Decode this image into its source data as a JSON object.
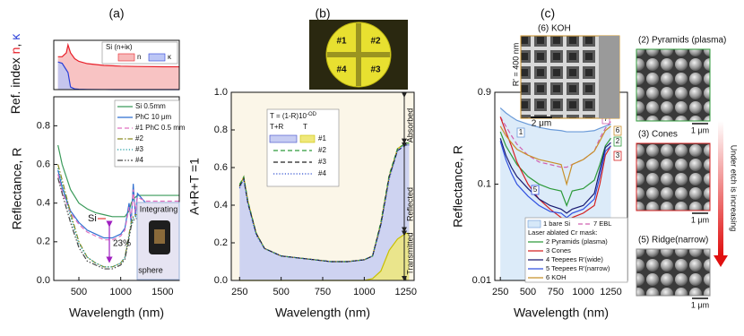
{
  "chart_data": [
    {
      "type": "line",
      "panel": "(a)",
      "ylabel": [
        "Ref. index ",
        "n",
        ", ",
        "κ"
      ],
      "ylabel_colors": [
        "#111111",
        "#e8202a",
        "#111111",
        "#2a3fd8"
      ],
      "legend_title": "Si (n+iκ)",
      "xlim": [
        200,
        1700
      ],
      "ylim": [
        0,
        7.5
      ],
      "x": [
        250,
        300,
        350,
        370,
        400,
        450,
        500,
        600,
        800,
        1000,
        1200,
        1500,
        1700
      ],
      "series": [
        {
          "name": "n",
          "color": "#e8202a",
          "fill": "#f7b9b9",
          "values": [
            5.0,
            5.0,
            5.6,
            6.8,
            5.6,
            4.7,
            4.3,
            3.95,
            3.68,
            3.57,
            3.52,
            3.48,
            3.47
          ]
        },
        {
          "name": "κ",
          "color": "#2a3fd8",
          "fill": "#bcc6f5",
          "values": [
            4.2,
            4.0,
            3.0,
            2.6,
            0.4,
            0.1,
            0.05,
            0.02,
            0.01,
            0,
            0,
            0,
            0
          ]
        }
      ]
    },
    {
      "type": "line",
      "xlabel": "Wavelength (nm)",
      "ylabel": "Reflectance, R",
      "xlim": [
        200,
        1700
      ],
      "xticks": [
        500,
        1000,
        1500
      ],
      "ylim": [
        0,
        0.95
      ],
      "yticks": [
        {
          "value": 0,
          "label": "0.0"
        },
        0.2,
        0.4,
        0.6,
        0.8
      ],
      "x": [
        250,
        300,
        400,
        500,
        600,
        700,
        800,
        900,
        1000,
        1050,
        1100,
        1125,
        1150,
        1175,
        1200,
        1300,
        1500,
        1700
      ],
      "series": [
        {
          "name": "Si 0.5mm",
          "color": "#3a9a5a",
          "values": [
            0.7,
            0.6,
            0.47,
            0.4,
            0.37,
            0.35,
            0.34,
            0.33,
            0.33,
            0.33,
            0.36,
            0.4,
            0.42,
            0.43,
            0.44,
            0.44,
            0.44,
            0.44
          ]
        },
        {
          "name": "PhC 10 μm",
          "color": "#2f6fd0",
          "values": [
            0.57,
            0.48,
            0.36,
            0.3,
            0.26,
            0.24,
            0.22,
            0.22,
            0.24,
            0.27,
            0.4,
            0.3,
            0.5,
            0.33,
            0.45,
            0.4,
            0.4,
            0.4
          ]
        },
        {
          "name": "#1 PhC 0.5 mm",
          "color": "#e070c0",
          "style": "dashed",
          "values": [
            0.55,
            0.46,
            0.35,
            0.29,
            0.25,
            0.23,
            0.21,
            0.21,
            0.23,
            0.26,
            0.38,
            0.32,
            0.47,
            0.35,
            0.43,
            0.41,
            0.41,
            0.41
          ]
        },
        {
          "name": "#2",
          "color": "#8a8a20",
          "style": "dashdot",
          "values": [
            0.6,
            0.52,
            0.35,
            0.2,
            0.12,
            0.09,
            0.07,
            0.07,
            0.09,
            0.12,
            0.24,
            0.3,
            0.33,
            0.34,
            0.34,
            0.34,
            0.33,
            0.33
          ]
        },
        {
          "name": "#3",
          "color": "#1a9aa0",
          "style": "dotted",
          "values": [
            0.58,
            0.5,
            0.33,
            0.19,
            0.12,
            0.09,
            0.07,
            0.07,
            0.09,
            0.12,
            0.23,
            0.29,
            0.32,
            0.33,
            0.33,
            0.33,
            0.33,
            0.33
          ]
        },
        {
          "name": "#4",
          "color": "#444444",
          "style": "dashdotdot",
          "values": [
            0.53,
            0.45,
            0.3,
            0.17,
            0.1,
            0.08,
            0.06,
            0.06,
            0.08,
            0.11,
            0.22,
            0.28,
            0.31,
            0.32,
            0.32,
            0.32,
            0.32,
            0.32
          ]
        }
      ],
      "annotations": [
        "Si",
        "23%"
      ],
      "inset": [
        "Integrating",
        "sphere"
      ]
    },
    {
      "type": "line",
      "panel": "(b)",
      "xlabel": "Wavelength (nm)",
      "ylabel": "A+R+T =1",
      "xlim": [
        200,
        1300
      ],
      "xticks": [
        250,
        500,
        750,
        1000,
        1250
      ],
      "ylim": [
        0,
        1
      ],
      "yticks": [
        {
          "value": 0,
          "label": "0.0"
        },
        0.2,
        0.4,
        0.6,
        0.8,
        {
          "value": 1,
          "label": "1.0"
        }
      ],
      "x": [
        250,
        275,
        300,
        350,
        400,
        500,
        600,
        700,
        800,
        900,
        1000,
        1050,
        1100,
        1150,
        1200,
        1250,
        1270
      ],
      "legend_title": "T = (1-R)10",
      "legend_title_sup": "-OD",
      "series": [
        {
          "name": "T+R",
          "color": "#3a48c8",
          "style": "dashed",
          "fill": "#c6ccf2",
          "values": [
            0.5,
            0.55,
            0.42,
            0.25,
            0.17,
            0.13,
            0.12,
            0.11,
            0.1,
            0.1,
            0.11,
            0.13,
            0.3,
            0.55,
            0.7,
            0.73,
            0.73
          ]
        },
        {
          "name": "T",
          "color": "#c8c000",
          "fill": "#efe87a",
          "values": [
            0,
            0,
            0,
            0,
            0,
            0,
            0,
            0,
            0,
            0,
            0,
            0.01,
            0.05,
            0.16,
            0.22,
            0.25,
            0.25
          ]
        },
        {
          "name": "#1",
          "color": "#d8b800",
          "values": [
            0.5,
            0.55,
            0.42,
            0.25,
            0.17,
            0.13,
            0.12,
            0.11,
            0.1,
            0.1,
            0.11,
            0.13,
            0.3,
            0.55,
            0.7,
            0.73,
            0.73
          ]
        },
        {
          "name": "#2",
          "color": "#2d9a3a",
          "style": "dashed",
          "values": [
            0.51,
            0.55,
            0.42,
            0.25,
            0.17,
            0.13,
            0.12,
            0.11,
            0.1,
            0.1,
            0.11,
            0.13,
            0.31,
            0.56,
            0.7,
            0.73,
            0.73
          ]
        },
        {
          "name": "#3",
          "color": "#222222",
          "style": "dashed",
          "values": [
            0.5,
            0.54,
            0.41,
            0.25,
            0.17,
            0.13,
            0.12,
            0.11,
            0.1,
            0.1,
            0.11,
            0.13,
            0.3,
            0.55,
            0.69,
            0.72,
            0.72
          ]
        },
        {
          "name": "#4",
          "color": "#3050d0",
          "style": "dotted",
          "values": [
            0.49,
            0.54,
            0.41,
            0.24,
            0.17,
            0.13,
            0.12,
            0.11,
            0.1,
            0.1,
            0.11,
            0.13,
            0.29,
            0.54,
            0.69,
            0.72,
            0.72
          ]
        }
      ],
      "annotations": [
        "Absorbed",
        "Reflected",
        "Transmitted"
      ],
      "photo_labels": [
        "#1",
        "#2",
        "#4",
        "#3"
      ]
    },
    {
      "type": "line",
      "panel": "(c)",
      "xlabel": "Wavelength (nm)",
      "ylabel": "Reflectance, R",
      "log": true,
      "xlim": [
        200,
        1400
      ],
      "xticks": [
        250,
        500,
        750,
        1000,
        1250
      ],
      "ylim": [
        0.01,
        0.9
      ],
      "yticks": [
        0.01,
        0.1,
        0.9
      ],
      "x": [
        250,
        300,
        350,
        400,
        500,
        600,
        700,
        800,
        850,
        900,
        1000,
        1100,
        1150,
        1200,
        1250
      ],
      "legend_header": "Laser ablated Cr mask:",
      "series": [
        {
          "name": "1 bare Si",
          "tag": "1",
          "color": "#6a9ad8",
          "fill": "#d6e8f8",
          "values": [
            0.62,
            0.55,
            0.5,
            0.46,
            0.42,
            0.39,
            0.37,
            0.36,
            0.35,
            0.35,
            0.35,
            0.36,
            0.38,
            0.4,
            0.42
          ]
        },
        {
          "name": "7 EBL",
          "tag": "7",
          "color": "#d060b0",
          "style": "dashed",
          "values": [
            0.5,
            0.4,
            0.32,
            0.26,
            0.2,
            0.17,
            0.16,
            0.15,
            0.15,
            0.16,
            0.18,
            0.22,
            0.3,
            0.38,
            0.45
          ]
        },
        {
          "name": "2 Pyramids (plasma)",
          "tag": "2",
          "color": "#2d9a3a",
          "values": [
            0.35,
            0.25,
            0.2,
            0.16,
            0.12,
            0.1,
            0.09,
            0.085,
            0.06,
            0.085,
            0.09,
            0.11,
            0.16,
            0.25,
            0.3
          ]
        },
        {
          "name": "3 Cones",
          "tag": "3",
          "color": "#d42020",
          "values": [
            0.5,
            0.35,
            0.25,
            0.17,
            0.1,
            0.07,
            0.055,
            0.045,
            0.04,
            0.045,
            0.05,
            0.06,
            0.1,
            0.2,
            0.25
          ]
        },
        {
          "name": "4 Teepees R'(wide)",
          "color": "#1a1a70",
          "values": [
            0.3,
            0.2,
            0.15,
            0.12,
            0.09,
            0.07,
            0.06,
            0.055,
            0.05,
            0.055,
            0.06,
            0.08,
            0.14,
            0.24,
            0.27
          ]
        },
        {
          "name": "5 Teepees R'(narrow)",
          "tag": "5",
          "color": "#3050e0",
          "values": [
            0.28,
            0.18,
            0.13,
            0.1,
            0.075,
            0.06,
            0.052,
            0.05,
            0.045,
            0.05,
            0.055,
            0.07,
            0.12,
            0.22,
            0.25
          ]
        },
        {
          "name": "6 KOH",
          "tag": "6",
          "color": "#c8902a",
          "values": [
            0.4,
            0.32,
            0.27,
            0.23,
            0.2,
            0.18,
            0.17,
            0.16,
            0.1,
            0.16,
            0.18,
            0.22,
            0.28,
            0.36,
            0.4
          ]
        }
      ],
      "images": [
        {
          "title": "(6) KOH",
          "scale": "2 μm",
          "period": "R' = 400 nm"
        },
        {
          "title": "(2) Pyramids (plasma)",
          "scale": "1 μm"
        },
        {
          "title": "(3) Cones",
          "scale": "1 μm"
        },
        {
          "title": "(5) Ridge(narrow)",
          "scale": "1 μm"
        }
      ],
      "trend_label": "Under etch is increasing"
    }
  ]
}
